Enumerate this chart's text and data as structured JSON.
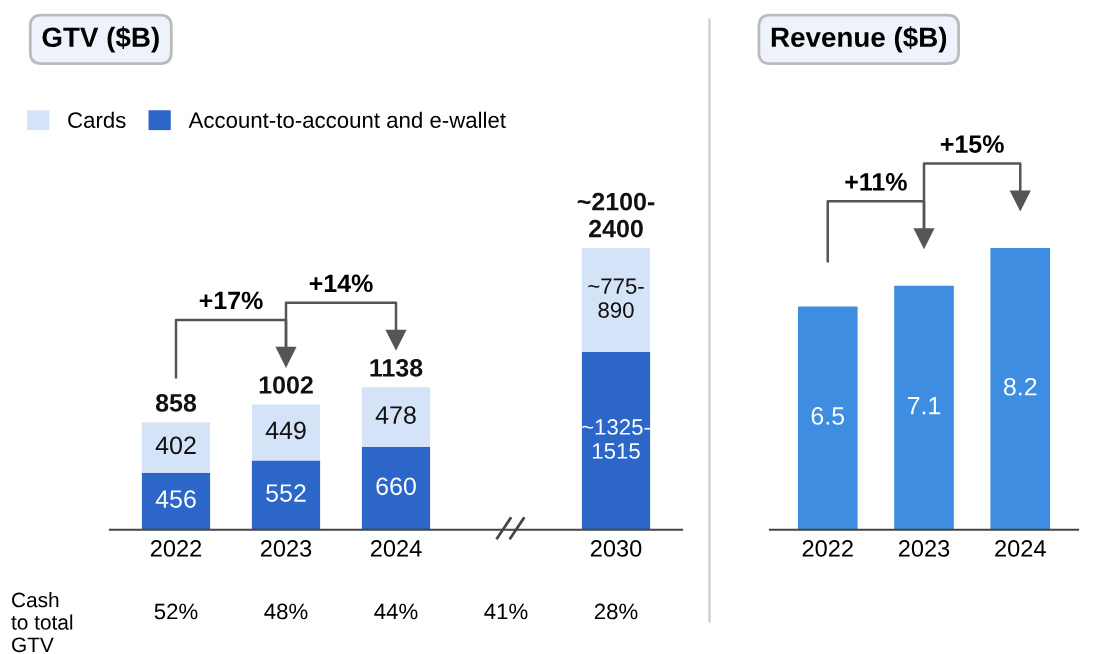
{
  "chart_data": [
    {
      "type": "bar",
      "title": "GTV ($B)",
      "stacked": true,
      "legend": "top left",
      "grid": false,
      "categories": [
        "2022",
        "2023",
        "2024",
        null,
        "2030"
      ],
      "series": [
        {
          "name": "Account-to-account and e-wallet",
          "color": "#2b66c8",
          "values": [
            456,
            552,
            660,
            null,
            1420
          ],
          "value_labels": [
            "456",
            "552",
            "660",
            null,
            "~1325-\n1515"
          ]
        },
        {
          "name": "Cards",
          "color": "#d4e3f7",
          "values": [
            402,
            449,
            478,
            null,
            830
          ],
          "value_labels": [
            "402",
            "449",
            "478",
            null,
            "~775-\n890"
          ]
        }
      ],
      "totals": [
        "858",
        "1002",
        "1138",
        null,
        "~2100-\n2400"
      ],
      "annotations": [
        "+17%",
        "+14%",
        "Cash\nto total\nGTV",
        "52%",
        "48%",
        "44%",
        "41%",
        "28%"
      ]
    },
    {
      "type": "bar",
      "title": "Revenue ($B)",
      "data_labels": true,
      "grid": false,
      "legend": false,
      "categories": [
        "2022",
        "2023",
        "2024"
      ],
      "series": [
        {
          "color": "#3f8de0",
          "values": [
            6.5,
            7.1,
            8.2
          ]
        }
      ],
      "annotations": [
        "+11%",
        "+15%"
      ]
    }
  ]
}
